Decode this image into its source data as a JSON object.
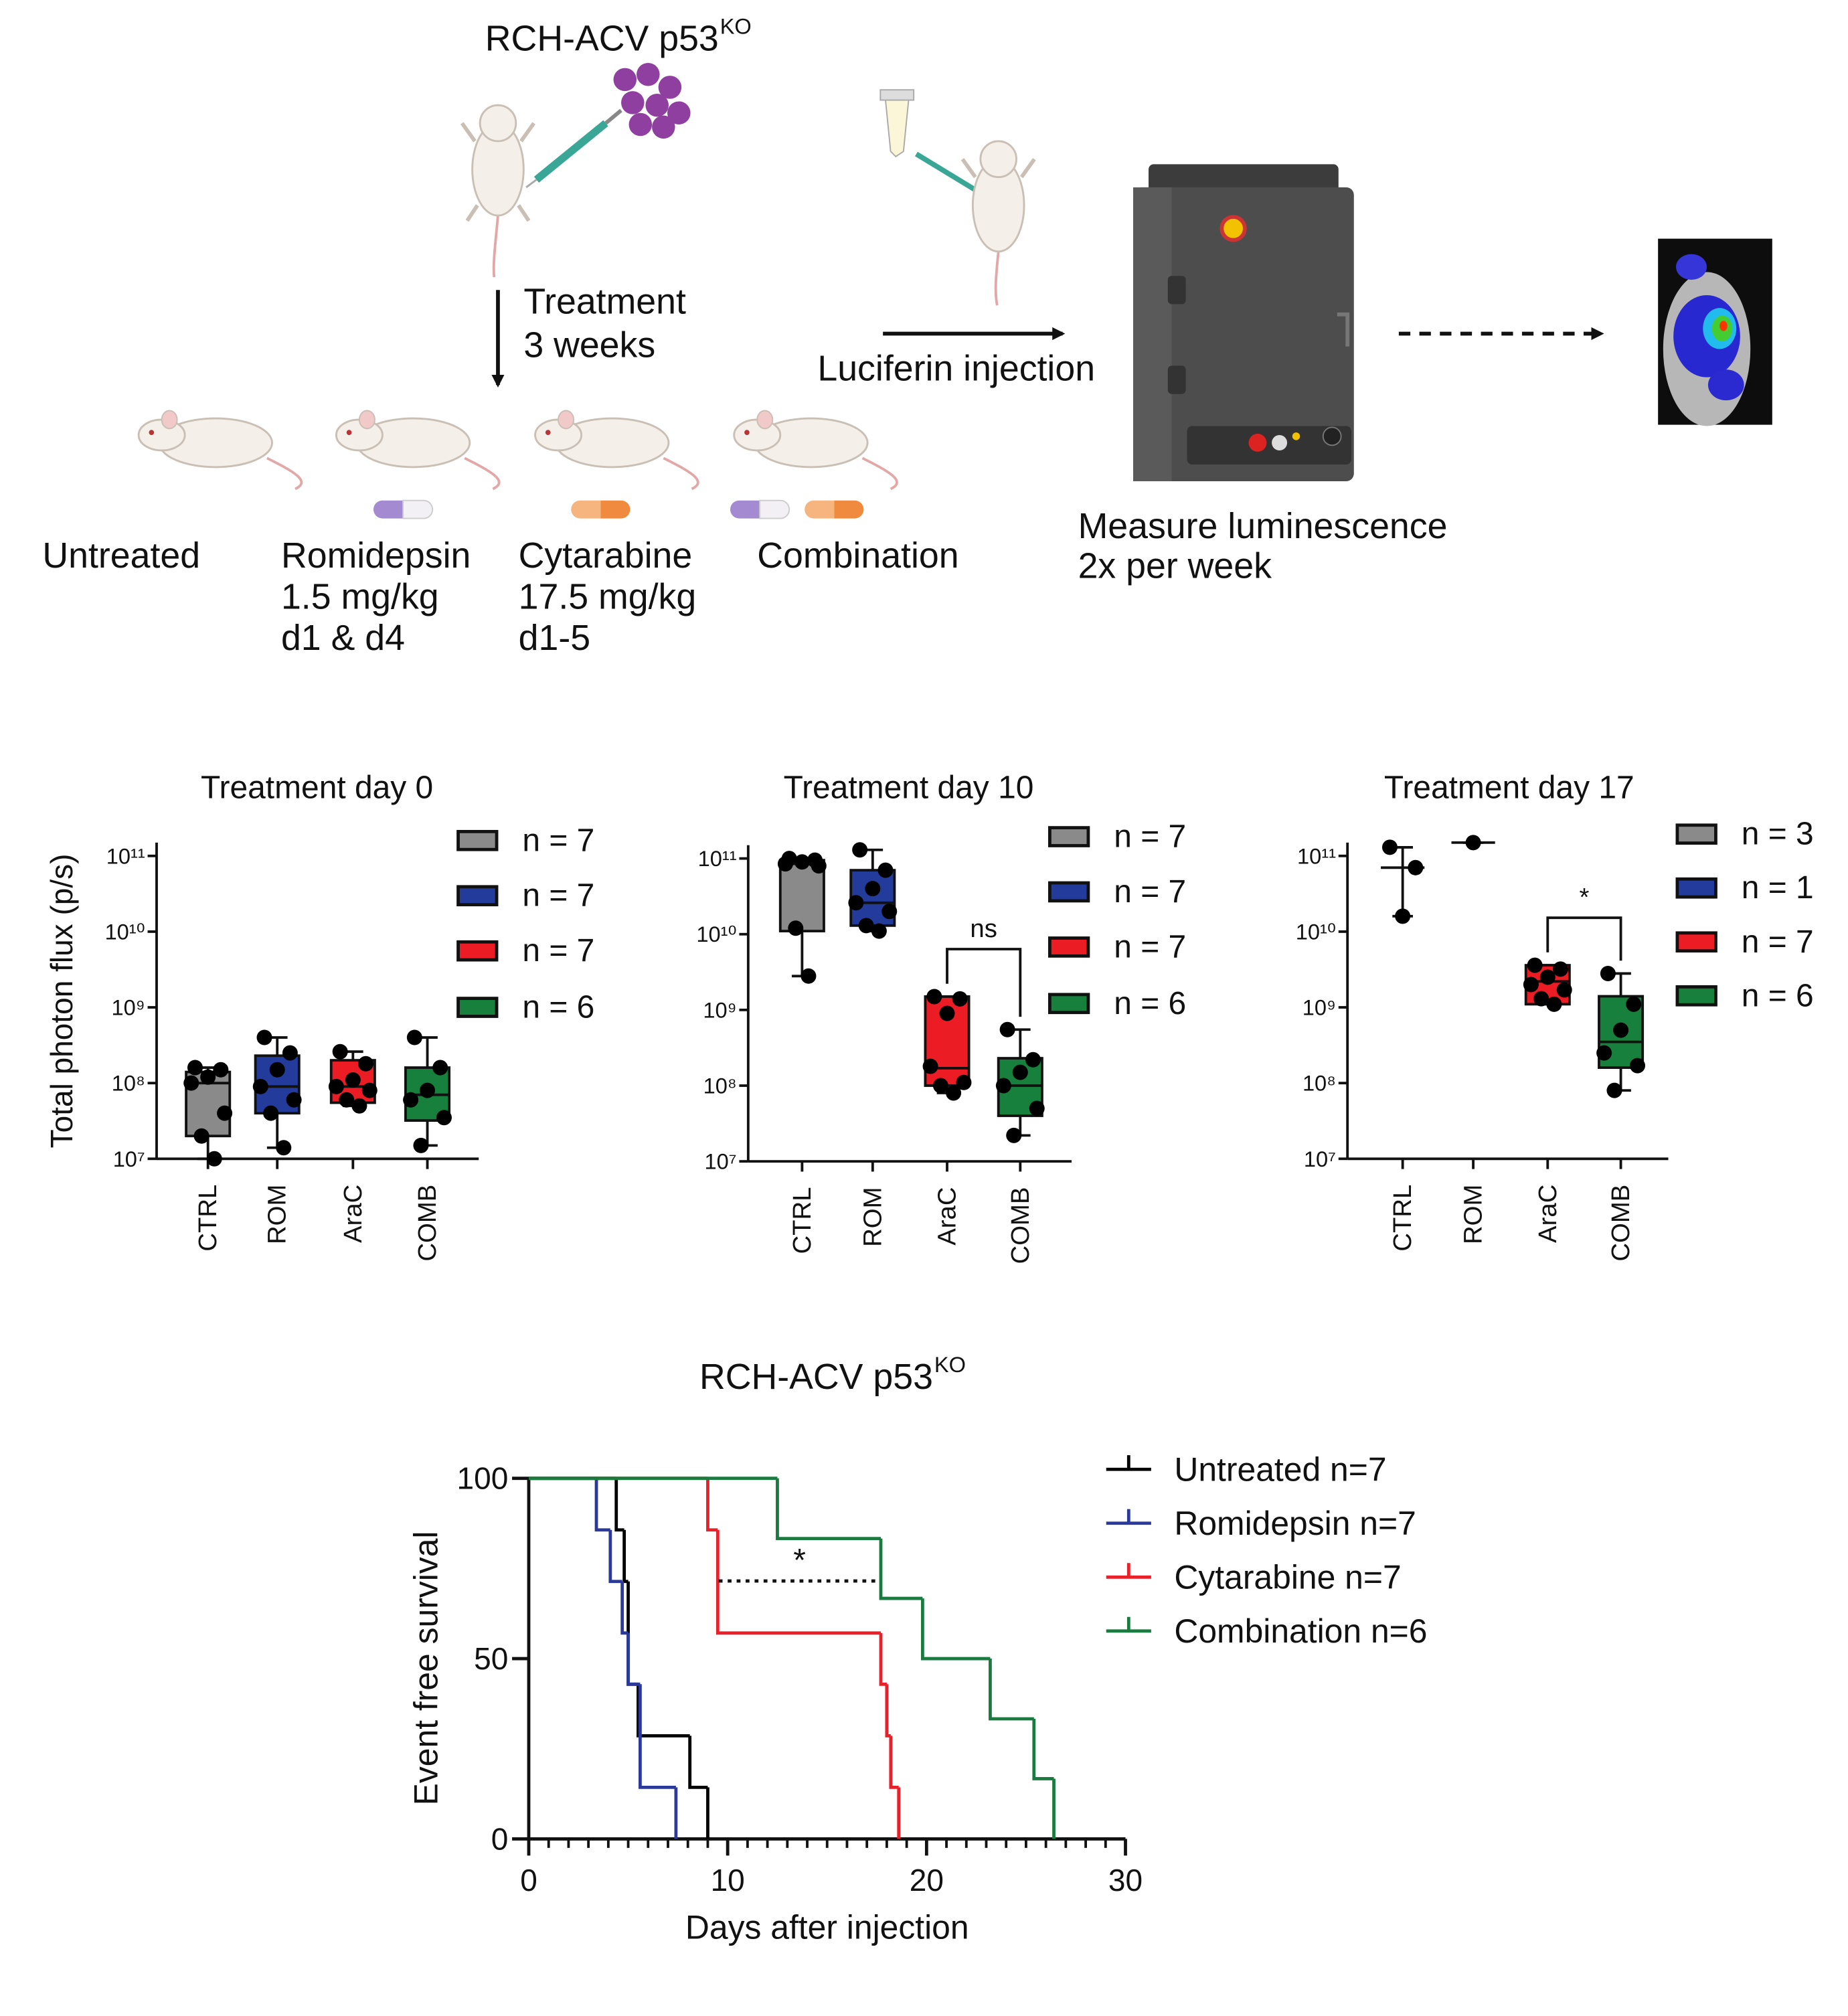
{
  "schematic": {
    "cell_line": "RCH-ACV p53",
    "cell_line_superscript": "KO",
    "treatment": "Treatment",
    "treatment_duration": "3 weeks",
    "luciferin": "Luciferin injection",
    "measure": [
      "Measure luminescence",
      "2x per week"
    ],
    "groups": [
      {
        "name": "Untreated"
      },
      {
        "name": "Romidepsin",
        "dose": "1.5 mg/kg",
        "schedule": "d1 & d4"
      },
      {
        "name": "Cytarabine",
        "dose": "17.5 mg/kg",
        "schedule": "d1-5"
      },
      {
        "name": "Combination"
      }
    ]
  },
  "chart_data": [
    {
      "type": "box",
      "title": "Treatment day 0",
      "ylabel": "Total photon flux (p/s)",
      "log_scale": true,
      "ylim": [
        10000000.0,
        150000000000.0
      ],
      "yticks": [
        {
          "value": 10000000.0,
          "label": "10⁷"
        },
        {
          "value": 100000000.0,
          "label": "10⁸"
        },
        {
          "value": 1000000000.0,
          "label": "10⁹"
        },
        {
          "value": 10000000000.0,
          "label": "10¹⁰"
        },
        {
          "value": 100000000000.0,
          "label": "10¹¹"
        }
      ],
      "categories": [
        "CTRL",
        "ROM",
        "AraC",
        "COMB"
      ],
      "series": [
        {
          "name": "n = 7",
          "color": "#8a8a8a",
          "box": {
            "min": 10000000.0,
            "q1": 20000000.0,
            "median": 100000000.0,
            "q3": 140000000.0,
            "max": 160000000.0
          },
          "points": [
            160000000.0,
            150000000.0,
            120000000.0,
            100000000.0,
            40000000.0,
            20000000.0,
            10000000.0
          ]
        },
        {
          "name": "n = 7",
          "color": "#233c9b",
          "box": {
            "min": 14000000.0,
            "q1": 40000000.0,
            "median": 90000000.0,
            "q3": 230000000.0,
            "max": 400000000.0
          },
          "points": [
            400000000.0,
            250000000.0,
            150000000.0,
            90000000.0,
            60000000.0,
            40000000.0,
            14000000.0
          ]
        },
        {
          "name": "n = 7",
          "color": "#ec1c24",
          "box": {
            "min": 50000000.0,
            "q1": 55000000.0,
            "median": 90000000.0,
            "q3": 200000000.0,
            "max": 260000000.0
          },
          "points": [
            260000000.0,
            180000000.0,
            110000000.0,
            90000000.0,
            80000000.0,
            60000000.0,
            50000000.0
          ]
        },
        {
          "name": "n = 6",
          "color": "#17803d",
          "box": {
            "min": 15000000.0,
            "q1": 32000000.0,
            "median": 70000000.0,
            "q3": 160000000.0,
            "max": 400000000.0
          },
          "points": [
            400000000.0,
            160000000.0,
            80000000.0,
            60000000.0,
            35000000.0,
            15000000.0
          ]
        }
      ]
    },
    {
      "type": "box",
      "title": "Treatment day 10",
      "log_scale": true,
      "annotation": "ns",
      "ylim": [
        10000000.0,
        150000000000.0
      ],
      "yticks": [
        {
          "value": 10000000.0,
          "label": "10⁷"
        },
        {
          "value": 100000000.0,
          "label": "10⁸"
        },
        {
          "value": 1000000000.0,
          "label": "10⁹"
        },
        {
          "value": 10000000000.0,
          "label": "10¹⁰"
        },
        {
          "value": 100000000000.0,
          "label": "10¹¹"
        }
      ],
      "categories": [
        "CTRL",
        "ROM",
        "AraC",
        "COMB"
      ],
      "series": [
        {
          "name": "n = 7",
          "color": "#8a8a8a",
          "box": {
            "min": 2800000000.0,
            "q1": 11000000000.0,
            "median": 85000000000.0,
            "q3": 95000000000.0,
            "max": 100000000000.0
          },
          "points": [
            100000000000.0,
            95000000000.0,
            90000000000.0,
            85000000000.0,
            80000000000.0,
            12000000000.0,
            2800000000.0
          ]
        },
        {
          "name": "n = 7",
          "color": "#233c9b",
          "box": {
            "min": 11000000000.0,
            "q1": 13000000000.0,
            "median": 26000000000.0,
            "q3": 70000000000.0,
            "max": 130000000000.0
          },
          "points": [
            130000000000.0,
            70000000000.0,
            40000000000.0,
            26000000000.0,
            20000000000.0,
            13000000000.0,
            11000000000.0
          ]
        },
        {
          "name": "n = 7",
          "color": "#ec1c24",
          "box": {
            "min": 80000000.0,
            "q1": 100000000.0,
            "median": 170000000.0,
            "q3": 1500000000.0,
            "max": 1500000000.0
          },
          "points": [
            1500000000.0,
            1400000000.0,
            900000000.0,
            180000000.0,
            110000000.0,
            100000000.0,
            80000000.0
          ]
        },
        {
          "name": "n = 6",
          "color": "#17803d",
          "box": {
            "min": 22000000.0,
            "q1": 40000000.0,
            "median": 100000000.0,
            "q3": 230000000.0,
            "max": 550000000.0
          },
          "points": [
            550000000.0,
            220000000.0,
            150000000.0,
            100000000.0,
            50000000.0,
            22000000.0
          ]
        }
      ]
    },
    {
      "type": "box",
      "title": "Treatment day 17",
      "log_scale": true,
      "annotation": "*",
      "ylim": [
        10000000.0,
        150000000000.0
      ],
      "yticks": [
        {
          "value": 10000000.0,
          "label": "10⁷"
        },
        {
          "value": 100000000.0,
          "label": "10⁸"
        },
        {
          "value": 1000000000.0,
          "label": "10⁹"
        },
        {
          "value": 10000000000.0,
          "label": "10¹⁰"
        },
        {
          "value": 100000000000.0,
          "label": "10¹¹"
        }
      ],
      "categories": [
        "CTRL",
        "ROM",
        "AraC",
        "COMB"
      ],
      "series": [
        {
          "name": "n = 3",
          "color": "#8a8a8a",
          "box": {
            "min": 16000000000.0,
            "q1": 70000000000.0,
            "median": 70000000000.0,
            "q3": 70000000000.0,
            "max": 130000000000.0
          },
          "points": [
            130000000000.0,
            70000000000.0,
            16000000000.0
          ]
        },
        {
          "name": "n = 1",
          "color": "#233c9b",
          "box": {
            "min": 150000000000.0,
            "q1": 150000000000.0,
            "median": 150000000000.0,
            "q3": 150000000000.0,
            "max": 150000000000.0
          },
          "points": [
            150000000000.0
          ]
        },
        {
          "name": "n = 7",
          "color": "#ec1c24",
          "box": {
            "min": 1100000000.0,
            "q1": 1100000000.0,
            "median": 2200000000.0,
            "q3": 3600000000.0,
            "max": 3600000000.0
          },
          "points": [
            3600000000.0,
            3200000000.0,
            2500000000.0,
            2000000000.0,
            1700000000.0,
            1300000000.0,
            1100000000.0
          ]
        },
        {
          "name": "n = 6",
          "color": "#17803d",
          "box": {
            "min": 80000000.0,
            "q1": 160000000.0,
            "median": 350000000.0,
            "q3": 1400000000.0,
            "max": 2800000000.0
          },
          "points": [
            2800000000.0,
            1100000000.0,
            500000000.0,
            250000000.0,
            170000000.0,
            80000000.0
          ]
        }
      ]
    },
    {
      "type": "step",
      "title": "RCH-ACV p53",
      "title_superscript": "KO",
      "annotation": "*",
      "xlabel": "Days after injection",
      "ylabel": "Event free survival",
      "xlim": [
        0,
        30
      ],
      "xticks": [
        0,
        10,
        20,
        30
      ],
      "ylim": [
        0,
        100
      ],
      "yticks": [
        0,
        50,
        100
      ],
      "series": [
        {
          "name": "Untreated n=7",
          "color": "#000000",
          "x": [
            0,
            4.4,
            4.8,
            5.0,
            5.5,
            8.1,
            9.0
          ],
          "values": [
            100,
            85.7,
            71.4,
            42.9,
            28.6,
            14.3,
            0
          ]
        },
        {
          "name": "Romidepsin n=7",
          "color": "#2b3a9a",
          "x": [
            0,
            3.4,
            4.1,
            4.7,
            5.0,
            5.6,
            7.4
          ],
          "values": [
            100,
            85.7,
            71.4,
            57.1,
            42.9,
            14.3,
            0
          ]
        },
        {
          "name": "Cytarabine n=7",
          "color": "#e8202a",
          "x": [
            0,
            9.0,
            9.5,
            17.7,
            18.0,
            18.2,
            18.6
          ],
          "values": [
            100,
            85.7,
            57.1,
            42.9,
            28.6,
            14.3,
            0
          ]
        },
        {
          "name": "Combination n=6",
          "color": "#1a7a3f",
          "x": [
            0,
            12.5,
            17.7,
            19.8,
            23.2,
            25.4,
            26.4
          ],
          "values": [
            100,
            83.3,
            66.7,
            50,
            33.3,
            16.7,
            0
          ]
        }
      ]
    }
  ]
}
